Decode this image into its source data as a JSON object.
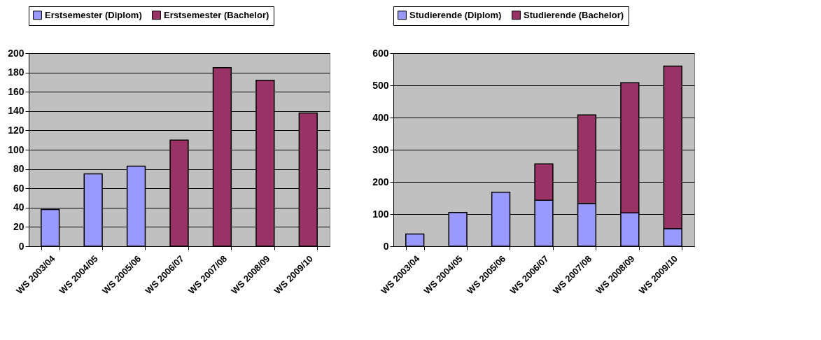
{
  "chart_data": [
    {
      "type": "bar",
      "stacked": true,
      "categories": [
        "WS 2003/04",
        "WS 2004/05",
        "WS 2005/06",
        "WS 2006/07",
        "WS 2007/08",
        "WS 2008/09",
        "WS 2009/10"
      ],
      "series": [
        {
          "name": "Erstsemester (Diplom)",
          "color": "#9999ff",
          "values": [
            38,
            75,
            83,
            null,
            null,
            null,
            null
          ]
        },
        {
          "name": "Erstsemester (Bachelor)",
          "color": "#993366",
          "values": [
            null,
            null,
            null,
            110,
            185,
            172,
            138
          ]
        }
      ],
      "ylim": [
        0,
        200
      ],
      "yticks": [
        0,
        20,
        40,
        60,
        80,
        100,
        120,
        140,
        160,
        180,
        200
      ],
      "grid": "y",
      "legend": "top"
    },
    {
      "type": "bar",
      "stacked": true,
      "categories": [
        "WS 2003/04",
        "WS 2004/05",
        "WS 2005/06",
        "WS 2006/07",
        "WS 2007/08",
        "WS 2008/09",
        "WS 2009/10"
      ],
      "series": [
        {
          "name": "Studierende (Diplom)",
          "color": "#9999ff",
          "values": [
            38,
            105,
            168,
            143,
            133,
            104,
            55
          ]
        },
        {
          "name": "Studierende (Bachelor)",
          "color": "#993366",
          "values": [
            null,
            null,
            null,
            113,
            275,
            404,
            505
          ]
        }
      ],
      "ylim": [
        0,
        600
      ],
      "yticks": [
        0,
        100,
        200,
        300,
        400,
        500,
        600
      ],
      "grid": "y",
      "legend": "top"
    }
  ]
}
